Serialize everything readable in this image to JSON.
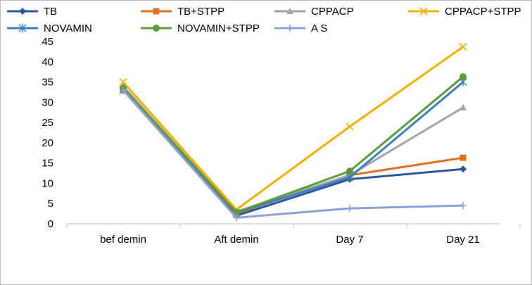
{
  "chart_data": {
    "type": "line",
    "categories": [
      "bef demin",
      "Aft demin",
      "Day 7",
      "Day 21"
    ],
    "ylim": [
      0,
      45
    ],
    "yticks": [
      0,
      5,
      10,
      15,
      20,
      25,
      30,
      35,
      40,
      45
    ],
    "grid": false,
    "legend_position": "top",
    "series": [
      {
        "name": "TB",
        "color": "#2e5597",
        "marker": "diamond",
        "values": [
          33.0,
          2.0,
          11.0,
          13.5
        ]
      },
      {
        "name": "TB+STPP",
        "color": "#e07020",
        "marker": "square",
        "values": [
          33.0,
          2.5,
          12.0,
          16.3
        ]
      },
      {
        "name": "CPPACP",
        "color": "#a5a5a5",
        "marker": "triangle",
        "values": [
          34.0,
          3.0,
          12.0,
          28.7
        ]
      },
      {
        "name": "CPPACP+STPP",
        "color": "#f0b000",
        "marker": "x",
        "values": [
          35.0,
          3.5,
          24.0,
          43.7
        ]
      },
      {
        "name": "NOVAMIN",
        "color": "#3a7fc0",
        "marker": "star",
        "values": [
          33.0,
          2.7,
          11.5,
          35.0
        ]
      },
      {
        "name": "NOVAMIN+STPP",
        "color": "#5b9b3a",
        "marker": "circle",
        "values": [
          33.5,
          2.8,
          13.0,
          36.3
        ]
      },
      {
        "name": "A S",
        "color": "#8ea0d8",
        "marker": "plus",
        "values": [
          33.0,
          1.5,
          3.8,
          4.5
        ]
      }
    ]
  }
}
